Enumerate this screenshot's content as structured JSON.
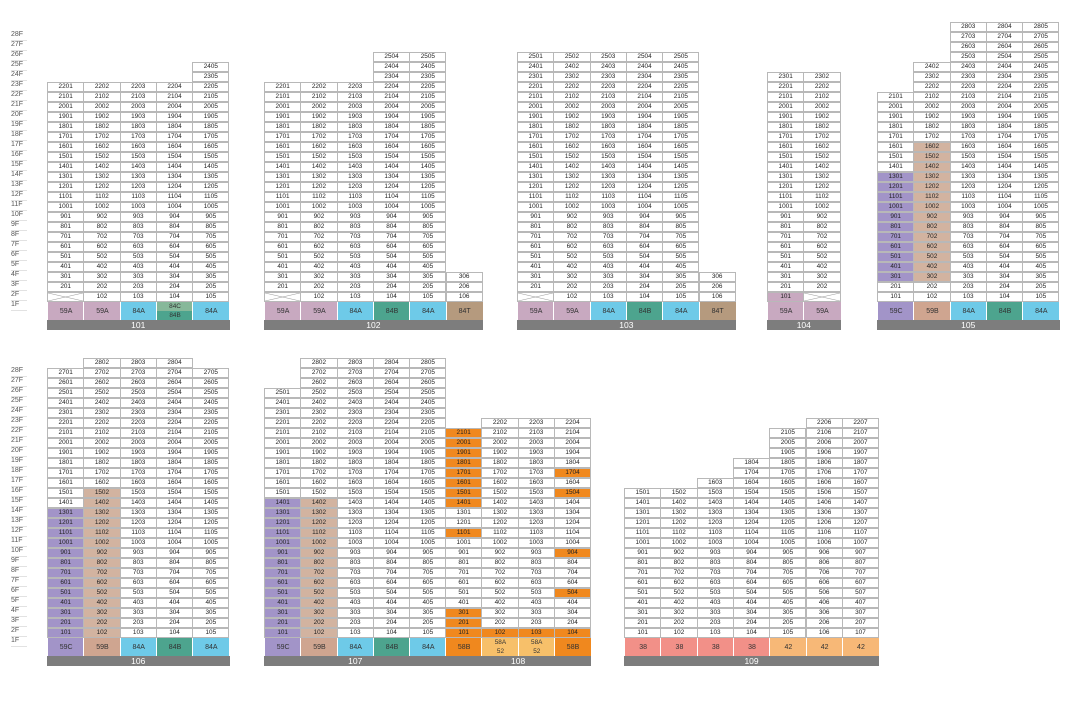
{
  "floor_labels": [
    "28F",
    "27F",
    "26F",
    "25F",
    "24F",
    "23F",
    "22F",
    "21F",
    "20F",
    "19F",
    "18F",
    "17F",
    "16F",
    "15F",
    "14F",
    "13F",
    "12F",
    "11F",
    "10F",
    "9F",
    "8F",
    "7F",
    "6F",
    "5F",
    "4F",
    "3F",
    "2F",
    "1F"
  ],
  "colors": {
    "59A": "#c8a9c0",
    "59B": "#cfa590",
    "59C": "#a294c8",
    "84A": "#6ecae8",
    "84B": "#4da48e",
    "84C": "#87b89a",
    "84T": "#b59a7e",
    "58B": "#f0881e",
    "58A": "#f7c06a",
    "52": "#f7c06a",
    "38": "#f29088",
    "42": "#f7b877",
    "h_purple": "#a294c8",
    "h_tan": "#d2b3a0",
    "h_orange": "#f0881e",
    "h_pink": "#c8a9c0",
    "name_bar": "#7d7d7d"
  },
  "buildings": [
    {
      "name": "101",
      "row": 0,
      "cols": [
        {
          "line": "01",
          "top": 22,
          "hidden": [
            1
          ],
          "type": "59A"
        },
        {
          "line": "02",
          "top": 22,
          "type": "59A"
        },
        {
          "line": "03",
          "top": 22,
          "type": "84A"
        },
        {
          "line": "04",
          "top": 22,
          "types": [
            "84C",
            "84B"
          ]
        },
        {
          "line": "05",
          "top": 24,
          "type": "84A"
        }
      ]
    },
    {
      "name": "102",
      "row": 0,
      "cols": [
        {
          "line": "01",
          "top": 22,
          "hidden": [
            1
          ],
          "type": "59A"
        },
        {
          "line": "02",
          "top": 22,
          "type": "59A"
        },
        {
          "line": "03",
          "top": 22,
          "type": "84A"
        },
        {
          "line": "04",
          "top": 25,
          "type": "84B"
        },
        {
          "line": "05",
          "top": 25,
          "type": "84A"
        },
        {
          "line": "06",
          "top": 3,
          "bottom": 1,
          "type": "84T"
        }
      ]
    },
    {
      "name": "103",
      "row": 0,
      "cols": [
        {
          "line": "01",
          "top": 25,
          "hidden": [
            1
          ],
          "type": "59A"
        },
        {
          "line": "02",
          "top": 25,
          "type": "59A"
        },
        {
          "line": "03",
          "top": 25,
          "type": "84A"
        },
        {
          "line": "04",
          "top": 25,
          "type": "84B"
        },
        {
          "line": "05",
          "top": 25,
          "type": "84A"
        },
        {
          "line": "06",
          "top": 3,
          "bottom": 1,
          "type": "84T"
        }
      ]
    },
    {
      "name": "104",
      "row": 0,
      "cols": [
        {
          "line": "01",
          "top": 23,
          "hl": {
            "1": "h_pink"
          },
          "type": "59A"
        },
        {
          "line": "02",
          "top": 23,
          "hidden": [
            1
          ],
          "type": "59A"
        }
      ]
    },
    {
      "name": "105",
      "row": 0,
      "cols": [
        {
          "line": "01",
          "top": 21,
          "hlr": [
            [
              3,
              13,
              "h_purple"
            ]
          ],
          "type": "59C"
        },
        {
          "line": "02",
          "top": 24,
          "hlr": [
            [
              3,
              16,
              "h_tan"
            ]
          ],
          "type": "59B"
        },
        {
          "line": "03",
          "top": 28,
          "type": "84A"
        },
        {
          "line": "04",
          "top": 28,
          "type": "84B"
        },
        {
          "line": "05",
          "top": 28,
          "type": "84A"
        }
      ]
    },
    {
      "name": "106",
      "row": 1,
      "cols": [
        {
          "line": "01",
          "top": 27,
          "hlr": [
            [
              1,
              13,
              "h_purple"
            ]
          ],
          "type": "59C"
        },
        {
          "line": "02",
          "top": 28,
          "hlr": [
            [
              1,
              15,
              "h_tan"
            ]
          ],
          "type": "59B"
        },
        {
          "line": "03",
          "top": 28,
          "type": "84A"
        },
        {
          "line": "04",
          "top": 28,
          "type": "84B"
        },
        {
          "line": "05",
          "top": 27,
          "type": "84A"
        }
      ]
    },
    {
      "name": "107",
      "row": 1,
      "cols": [
        {
          "line": "01",
          "top": 25,
          "hlr": [
            [
              1,
              14,
              "h_purple"
            ]
          ],
          "type": "59C"
        },
        {
          "line": "02",
          "top": 28,
          "hlr": [
            [
              1,
              14,
              "h_tan"
            ]
          ],
          "type": "59B"
        },
        {
          "line": "03",
          "top": 28,
          "type": "84A"
        },
        {
          "line": "04",
          "top": 28,
          "type": "84B"
        },
        {
          "line": "05",
          "top": 28,
          "type": "84A"
        }
      ]
    },
    {
      "name": "108",
      "row": 1,
      "cols": [
        {
          "line": "01",
          "top": 21,
          "hlr": [
            [
              14,
              21,
              "h_orange"
            ],
            [
              1,
              3,
              "h_orange"
            ]
          ],
          "hl": {
            "11": "h_orange"
          },
          "type": "58B"
        },
        {
          "line": "02",
          "top": 22,
          "hl": {
            "1": "h_orange"
          },
          "types": [
            "58A",
            "52"
          ]
        },
        {
          "line": "03",
          "top": 22,
          "hl": {
            "1": "h_orange"
          },
          "types": [
            "58A",
            "52"
          ]
        },
        {
          "line": "04",
          "top": 22,
          "hl": {
            "1": "h_orange",
            "5": "h_orange",
            "9": "h_orange",
            "15": "h_orange",
            "17": "h_orange"
          },
          "type": "58B"
        }
      ]
    },
    {
      "name": "109",
      "row": 1,
      "cols": [
        {
          "line": "01",
          "top": 15,
          "type": "38"
        },
        {
          "line": "02",
          "top": 15,
          "type": "38"
        },
        {
          "line": "03",
          "top": 16,
          "type": "38"
        },
        {
          "line": "04",
          "top": 18,
          "type": "38"
        },
        {
          "line": "05",
          "top": 21,
          "type": "42"
        },
        {
          "line": "06",
          "top": 22,
          "type": "42"
        },
        {
          "line": "07",
          "top": 22,
          "type": "42"
        }
      ]
    }
  ]
}
